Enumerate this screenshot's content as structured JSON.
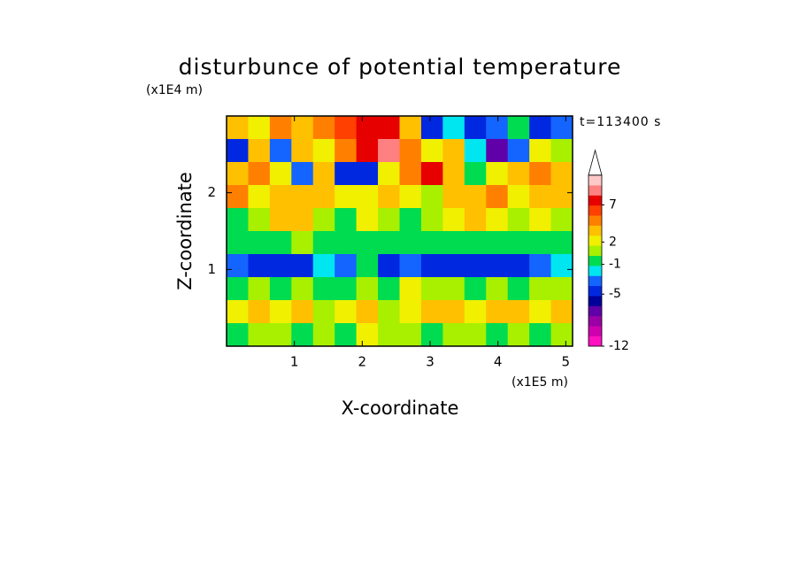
{
  "chart_data": {
    "type": "contour",
    "title": "disturbunce of potential temperature",
    "ylabel_unit": "(x1E4 m)",
    "xlabel_unit": "(x1E5 m)",
    "xlabel": "X-coordinate",
    "ylabel": "Z-coordinate",
    "annotation": "t=113400 s",
    "xlim": [
      0,
      5.1
    ],
    "ylim": [
      0,
      3
    ],
    "xticks": [
      1,
      2,
      3,
      4,
      5
    ],
    "yticks": [
      1,
      2
    ],
    "clim": [
      -12,
      11
    ],
    "cticks": [
      -12,
      -5,
      -1,
      2,
      7
    ],
    "colors": [
      "#ff10c0",
      "#d000b0",
      "#9a00a6",
      "#6000a8",
      "#00009a",
      "#0028e0",
      "#1464ff",
      "#00e6f0",
      "#00dc50",
      "#a8f000",
      "#f0f000",
      "#ffc000",
      "#ff8000",
      "#ff4000",
      "#e60000",
      "#ff8080",
      "#ffc8c8"
    ],
    "z": [
      [
        4,
        2,
        5,
        3,
        5,
        6,
        7,
        8,
        3,
        -4,
        -2,
        -4,
        -3,
        -1,
        -4,
        -3
      ],
      [
        -4,
        3,
        -3,
        4,
        2,
        5,
        8,
        9,
        5,
        2,
        3,
        -2,
        -7,
        -3,
        2,
        1
      ],
      [
        3,
        5,
        2,
        -3,
        3,
        -4,
        -4,
        2,
        5,
        7,
        3,
        0,
        2,
        4,
        5,
        4
      ],
      [
        5,
        2,
        4,
        3,
        4,
        2,
        2,
        3,
        2,
        1,
        3,
        4,
        5,
        2,
        3,
        4
      ],
      [
        -1,
        1,
        3,
        4,
        1,
        0,
        2,
        1,
        0,
        1,
        2,
        3,
        2,
        1,
        2,
        1
      ],
      [
        0,
        -1,
        0,
        1,
        -1,
        -1,
        0,
        -1,
        0,
        0,
        -1,
        -1,
        -1,
        0,
        0,
        0
      ],
      [
        -3,
        -4,
        -4,
        -5,
        -2,
        -3,
        -1,
        -4,
        -3,
        -4,
        -5,
        -5,
        -4,
        -4,
        -3,
        -2
      ],
      [
        0,
        1,
        0,
        1,
        0,
        -1,
        1,
        0,
        2,
        1,
        1,
        0,
        1,
        0,
        1,
        1
      ],
      [
        2,
        3,
        2,
        3,
        1,
        2,
        3,
        1,
        2,
        3,
        3,
        2,
        3,
        3,
        2,
        3
      ],
      [
        0,
        1,
        1,
        0,
        1,
        0,
        2,
        1,
        1,
        0,
        1,
        1,
        0,
        1,
        0,
        1
      ]
    ]
  }
}
